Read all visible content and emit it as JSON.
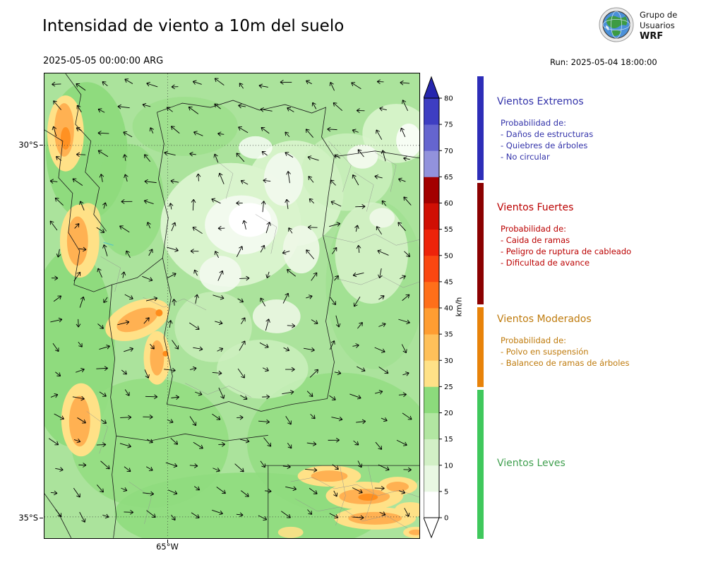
{
  "header": {
    "title": "Intensidad de viento a 10m del suelo",
    "valid_datetime": "2025-05-05 00:00:00 ARG",
    "run_label": "Run: 2025-05-04 18:00:00",
    "logo": {
      "line1": "Grupo de",
      "line2": "Usuarios",
      "line3": "WRF"
    }
  },
  "map": {
    "lat_labels": [
      "30°S",
      "35°S"
    ],
    "lon_labels": [
      "65°W"
    ]
  },
  "colorbar": {
    "unit": "km/h",
    "ticks": [
      "0",
      "5",
      "10",
      "15",
      "20",
      "25",
      "30",
      "35",
      "40",
      "45",
      "50",
      "55",
      "60",
      "65",
      "70",
      "75",
      "80"
    ],
    "segment_colors_bottom_to_top": [
      "#ffffff",
      "#e9f8e3",
      "#d2f0c6",
      "#b2e6a2",
      "#8cdb7c",
      "#ffe187",
      "#ffc05a",
      "#ff9d32",
      "#ff6f1a",
      "#fa4711",
      "#ed230a",
      "#d00f04",
      "#a30000",
      "#9292dc",
      "#6565cf",
      "#3e3ec2"
    ],
    "over_color": "#2626ae",
    "under_color": "#ffffff"
  },
  "legend": {
    "sections": [
      {
        "title": "Vientos Extremos",
        "bar_color": "#2d2db8",
        "text_color": "#3333aa",
        "intro": "Probabilidad de:",
        "items": [
          "- Daños de estructuras",
          "- Quiebres de árboles",
          "- No circular"
        ]
      },
      {
        "title": "Vientos Fuertes",
        "bar_color": "#8b0000",
        "text_color": "#bb0000",
        "intro": "Probabilidad de:",
        "items": [
          "- Caida de ramas",
          "- Peligro de ruptura de cableado",
          "- Dificultad de avance"
        ]
      },
      {
        "title": "Vientos Moderados",
        "bar_color": "#e8830a",
        "text_color": "#bf7b0d",
        "intro": "Probabilidad de:",
        "items": [
          "- Polvo en suspensión",
          "- Balanceo de ramas de árboles"
        ]
      },
      {
        "title": "Vientos Leves",
        "bar_color": "#3fc85c",
        "text_color": "#41a050",
        "intro": "",
        "items": []
      }
    ]
  }
}
